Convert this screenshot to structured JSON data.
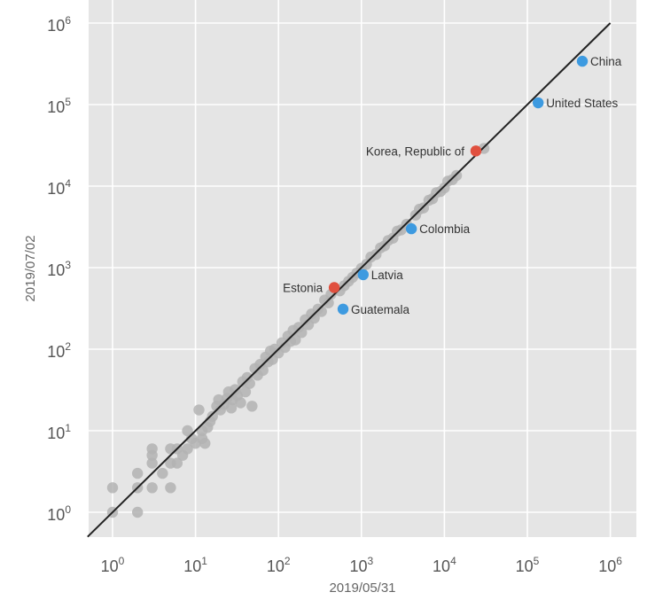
{
  "chart_data": {
    "type": "scatter",
    "xlabel": "2019/05/31",
    "ylabel": "2019/07/02",
    "x_scale": "log",
    "y_scale": "log",
    "xlim": [
      0.5,
      2500000
    ],
    "ylim": [
      0.4,
      2000000
    ],
    "x_ticks": [
      {
        "value": 1,
        "base": "10",
        "exp": "0"
      },
      {
        "value": 10,
        "base": "10",
        "exp": "1"
      },
      {
        "value": 100,
        "base": "10",
        "exp": "2"
      },
      {
        "value": 1000,
        "base": "10",
        "exp": "3"
      },
      {
        "value": 10000,
        "base": "10",
        "exp": "4"
      },
      {
        "value": 100000,
        "base": "10",
        "exp": "5"
      },
      {
        "value": 1000000,
        "base": "10",
        "exp": "6"
      }
    ],
    "y_ticks": [
      {
        "value": 1,
        "base": "10",
        "exp": "0"
      },
      {
        "value": 10,
        "base": "10",
        "exp": "1"
      },
      {
        "value": 100,
        "base": "10",
        "exp": "2"
      },
      {
        "value": 1000,
        "base": "10",
        "exp": "3"
      },
      {
        "value": 10000,
        "base": "10",
        "exp": "4"
      },
      {
        "value": 100000,
        "base": "10",
        "exp": "5"
      },
      {
        "value": 1000000,
        "base": "10",
        "exp": "6"
      }
    ],
    "grid": true,
    "reference_line": {
      "slope": 1,
      "color": "#222222"
    },
    "colors": {
      "background": "#e5e5e5",
      "grid": "#ffffff",
      "other": "#b3b3b3",
      "highlight_blue": "#3d9ae0",
      "highlight_red": "#e0503f"
    },
    "highlighted": [
      {
        "name": "China",
        "x": 460000,
        "y": 340000,
        "color": "#3d9ae0",
        "label_side": "right"
      },
      {
        "name": "United States",
        "x": 135000,
        "y": 105000,
        "color": "#3d9ae0",
        "label_side": "right"
      },
      {
        "name": "Korea, Republic of",
        "x": 24000,
        "y": 27000,
        "color": "#e0503f",
        "label_side": "left"
      },
      {
        "name": "Colombia",
        "x": 4000,
        "y": 3000,
        "color": "#3d9ae0",
        "label_side": "right"
      },
      {
        "name": "Latvia",
        "x": 1050,
        "y": 820,
        "color": "#3d9ae0",
        "label_side": "right"
      },
      {
        "name": "Estonia",
        "x": 470,
        "y": 570,
        "color": "#e0503f",
        "label_side": "left"
      },
      {
        "name": "Guatemala",
        "x": 600,
        "y": 310,
        "color": "#3d9ae0",
        "label_side": "right"
      }
    ],
    "other_points": [
      [
        1,
        1
      ],
      [
        1,
        2
      ],
      [
        2,
        1
      ],
      [
        2,
        2
      ],
      [
        2,
        3
      ],
      [
        3,
        2
      ],
      [
        3,
        4
      ],
      [
        3,
        5
      ],
      [
        3,
        6
      ],
      [
        4,
        3
      ],
      [
        5,
        2
      ],
      [
        5,
        4
      ],
      [
        5,
        6
      ],
      [
        6,
        4
      ],
      [
        6,
        6
      ],
      [
        7,
        5
      ],
      [
        8,
        6
      ],
      [
        8,
        10
      ],
      [
        9,
        8
      ],
      [
        10,
        7
      ],
      [
        11,
        18
      ],
      [
        12,
        8
      ],
      [
        12,
        10
      ],
      [
        13,
        7
      ],
      [
        14,
        11
      ],
      [
        15,
        13
      ],
      [
        16,
        15
      ],
      [
        18,
        20
      ],
      [
        19,
        24
      ],
      [
        20,
        18
      ],
      [
        22,
        21
      ],
      [
        24,
        25
      ],
      [
        25,
        30
      ],
      [
        27,
        19
      ],
      [
        28,
        24
      ],
      [
        30,
        32
      ],
      [
        32,
        27
      ],
      [
        35,
        22
      ],
      [
        37,
        40
      ],
      [
        40,
        30
      ],
      [
        42,
        45
      ],
      [
        45,
        38
      ],
      [
        48,
        20
      ],
      [
        52,
        58
      ],
      [
        56,
        48
      ],
      [
        60,
        65
      ],
      [
        65,
        55
      ],
      [
        70,
        80
      ],
      [
        75,
        70
      ],
      [
        80,
        95
      ],
      [
        85,
        75
      ],
      [
        90,
        100
      ],
      [
        100,
        90
      ],
      [
        110,
        120
      ],
      [
        120,
        105
      ],
      [
        130,
        145
      ],
      [
        140,
        125
      ],
      [
        150,
        170
      ],
      [
        160,
        130
      ],
      [
        175,
        185
      ],
      [
        190,
        160
      ],
      [
        210,
        230
      ],
      [
        230,
        200
      ],
      [
        250,
        270
      ],
      [
        270,
        240
      ],
      [
        300,
        310
      ],
      [
        330,
        290
      ],
      [
        360,
        400
      ],
      [
        400,
        370
      ],
      [
        430,
        470
      ],
      [
        550,
        520
      ],
      [
        620,
        600
      ],
      [
        700,
        680
      ],
      [
        780,
        760
      ],
      [
        880,
        860
      ],
      [
        1000,
        980
      ],
      [
        1150,
        1100
      ],
      [
        1300,
        1350
      ],
      [
        1500,
        1450
      ],
      [
        1700,
        1750
      ],
      [
        1900,
        1850
      ],
      [
        2100,
        2150
      ],
      [
        2400,
        2300
      ],
      [
        2700,
        2800
      ],
      [
        3000,
        2900
      ],
      [
        3500,
        3400
      ],
      [
        4500,
        4400
      ],
      [
        5000,
        5200
      ],
      [
        5600,
        5400
      ],
      [
        6500,
        6700
      ],
      [
        7200,
        7000
      ],
      [
        8000,
        8300
      ],
      [
        9000,
        8600
      ],
      [
        10000,
        9500
      ],
      [
        11000,
        11500
      ],
      [
        12500,
        12000
      ],
      [
        14000,
        13500
      ],
      [
        30000,
        29000
      ]
    ]
  }
}
